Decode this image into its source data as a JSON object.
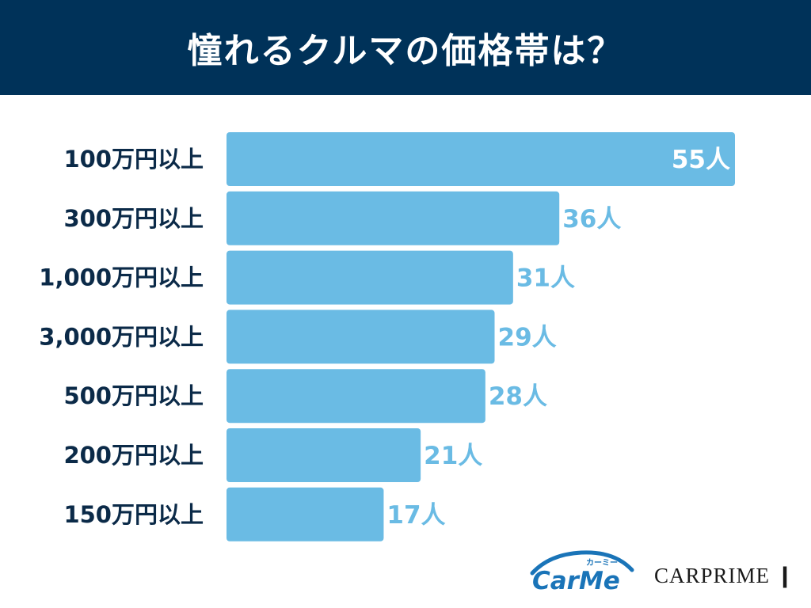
{
  "header": {
    "title": "憧れるクルマの価格帯は？"
  },
  "chart_data": {
    "type": "bar",
    "orientation": "horizontal",
    "title": "憧れるクルマの価格帯は？",
    "categories": [
      "100万円以上",
      "300万円以上",
      "1,000万円以上",
      "3,000万円以上",
      "500万円以上",
      "200万円以上",
      "150万円以上"
    ],
    "values": [
      55,
      36,
      31,
      29,
      28,
      21,
      17
    ],
    "value_labels": [
      "55人",
      "36人",
      "31人",
      "29人",
      "28人",
      "21人",
      "17人"
    ],
    "unit": "人",
    "xlim": [
      0,
      55
    ],
    "grid": false,
    "legend": "none",
    "colors": {
      "bar": "#6abbe4",
      "label_outside": "#6abbe4",
      "label_inside": "#ffffff",
      "header_bg": "#003259"
    }
  },
  "logos": {
    "carme": {
      "text": "CarMe",
      "kana": "カーミー"
    },
    "carprime": {
      "text": "CARPRIME"
    }
  }
}
